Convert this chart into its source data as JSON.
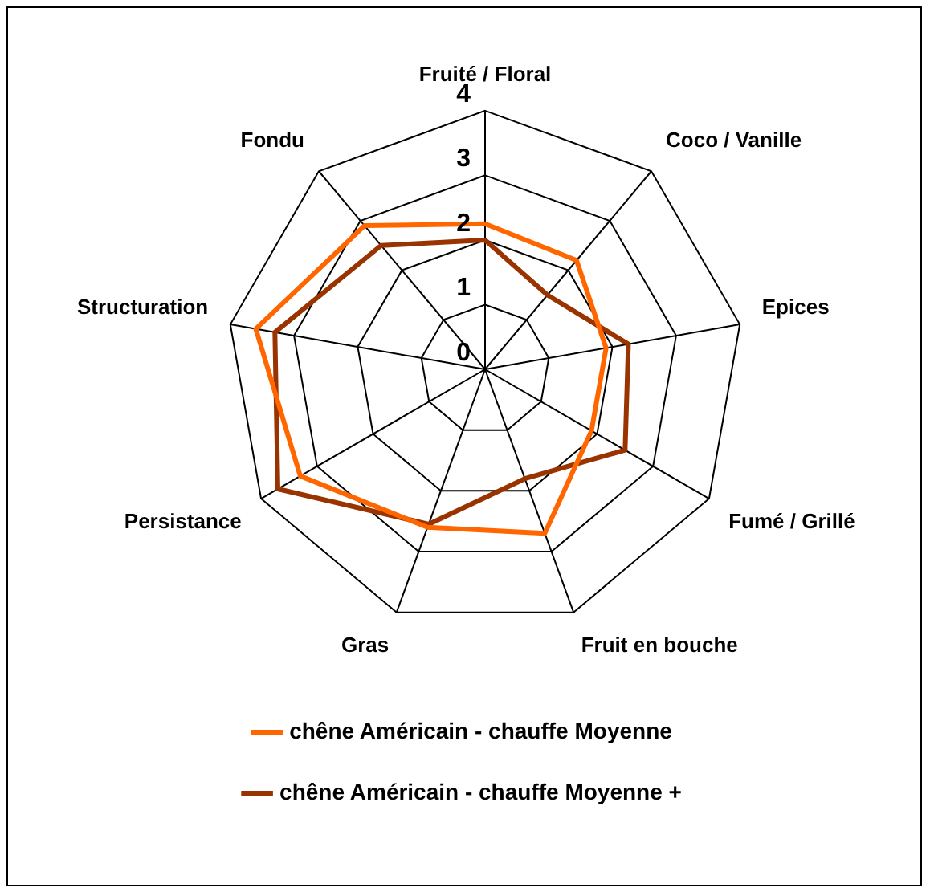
{
  "chart_data": {
    "type": "radar",
    "categories": [
      "Fruité / Floral",
      "Coco / Vanille",
      "Epices",
      "Fumé / Grillé",
      "Fruit en bouche",
      "Gras",
      "Persistance",
      "Structuration",
      "Fondu"
    ],
    "ylim": [
      0,
      4
    ],
    "yticks": [
      0,
      1,
      2,
      3,
      4
    ],
    "legend": "bottom",
    "grid": true,
    "marker": "none",
    "series": [
      {
        "name": "chêne Américain - chauffe Moyenne",
        "color": "#ff6600",
        "values": [
          2.25,
          2.2,
          1.9,
          1.9,
          2.7,
          2.6,
          3.3,
          3.6,
          2.9
        ]
      },
      {
        "name": "chêne Américain - chauffe Moyenne +",
        "color": "#993300",
        "values": [
          2.0,
          1.5,
          2.25,
          2.5,
          1.8,
          2.55,
          3.7,
          3.3,
          2.5
        ]
      }
    ]
  }
}
